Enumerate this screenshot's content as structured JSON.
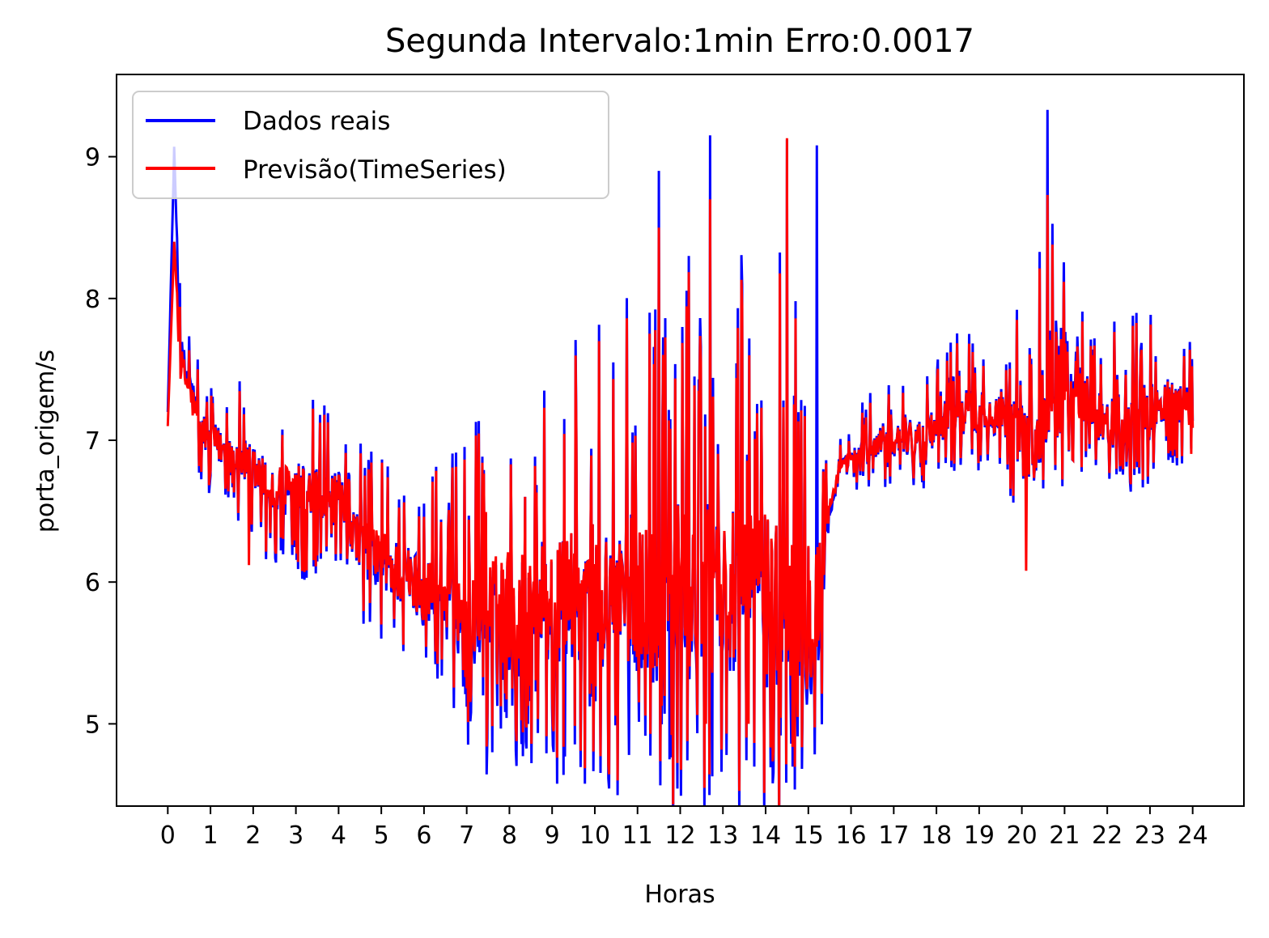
{
  "chart_data": {
    "type": "line",
    "title": "Segunda Intervalo:1min Erro:0.0017",
    "xlabel": "Horas",
    "ylabel": "porta_origem/s",
    "xlim": [
      -1.2,
      25.2
    ],
    "ylim": [
      4.42,
      9.58
    ],
    "xticks": [
      0,
      1,
      2,
      3,
      4,
      5,
      6,
      7,
      8,
      9,
      10,
      11,
      12,
      13,
      14,
      15,
      16,
      17,
      18,
      19,
      20,
      21,
      22,
      23,
      24
    ],
    "xtick_labels": [
      "0",
      "1",
      "2",
      "3",
      "4",
      "5",
      "6",
      "7",
      "8",
      "9",
      "10",
      "11",
      "12",
      "13",
      "14",
      "15",
      "16",
      "17",
      "18",
      "19",
      "20",
      "21",
      "22",
      "23",
      "24"
    ],
    "yticks": [
      5,
      6,
      7,
      8,
      9
    ],
    "ytick_labels": [
      "5",
      "6",
      "7",
      "8",
      "9"
    ],
    "grid": false,
    "legend_position": "top-left",
    "series": [
      {
        "name": "Dados reais",
        "color": "#0000ff",
        "x": [
          0.0,
          0.15,
          0.3,
          0.5,
          0.75,
          1.0,
          1.25,
          1.5,
          1.75,
          2.0,
          2.25,
          2.5,
          2.75,
          3.0,
          3.25,
          3.5,
          3.75,
          4.0,
          4.25,
          4.5,
          4.75,
          5.0,
          5.25,
          5.5,
          5.75,
          6.0,
          6.25,
          6.5,
          6.75,
          7.0,
          7.25,
          7.5,
          7.75,
          8.0,
          8.25,
          8.5,
          8.75,
          9.0,
          9.25,
          9.5,
          9.75,
          10.0,
          10.25,
          10.5,
          10.75,
          11.0,
          11.25,
          11.5,
          11.75,
          12.0,
          12.25,
          12.5,
          12.75,
          13.0,
          13.25,
          13.5,
          13.75,
          14.0,
          14.25,
          14.5,
          14.75,
          15.0,
          15.25,
          15.5,
          15.75,
          16.0,
          16.25,
          16.5,
          16.75,
          17.0,
          17.25,
          17.5,
          17.75,
          18.0,
          18.25,
          18.5,
          18.75,
          19.0,
          19.25,
          19.5,
          19.75,
          20.0,
          20.25,
          20.5,
          20.75,
          21.0,
          21.25,
          21.5,
          21.75,
          22.0,
          22.25,
          22.5,
          22.75,
          23.0,
          23.25,
          23.5,
          23.75,
          24.0
        ],
        "y": [
          7.2,
          9.05,
          7.6,
          7.4,
          7.1,
          7.0,
          6.95,
          6.9,
          6.85,
          6.8,
          6.7,
          6.65,
          6.6,
          6.65,
          6.6,
          6.6,
          6.55,
          6.6,
          6.4,
          6.3,
          6.2,
          6.15,
          6.1,
          6.05,
          6.0,
          5.95,
          5.9,
          5.85,
          5.8,
          5.8,
          5.75,
          5.7,
          5.7,
          5.8,
          5.7,
          5.75,
          5.9,
          5.8,
          5.85,
          5.9,
          5.9,
          5.9,
          5.9,
          5.95,
          5.95,
          5.9,
          5.85,
          5.85,
          5.9,
          5.95,
          5.9,
          5.9,
          5.95,
          5.9,
          5.85,
          5.9,
          5.95,
          5.9,
          5.85,
          5.9,
          5.9,
          5.8,
          5.8,
          6.5,
          6.8,
          6.85,
          6.9,
          6.95,
          7.0,
          7.0,
          7.05,
          7.0,
          7.05,
          7.1,
          7.15,
          7.2,
          7.2,
          7.2,
          7.2,
          7.2,
          7.1,
          7.0,
          6.95,
          7.2,
          7.6,
          7.5,
          7.4,
          7.3,
          7.2,
          7.1,
          7.15,
          7.15,
          7.2,
          7.2,
          7.25,
          7.3,
          7.25,
          7.25
        ],
        "amplitude": [
          0.0,
          0.0,
          0.35,
          0.35,
          0.35,
          0.35,
          0.35,
          0.4,
          0.4,
          0.45,
          0.5,
          0.5,
          0.55,
          0.55,
          0.55,
          0.55,
          0.5,
          0.45,
          0.4,
          0.5,
          0.55,
          0.55,
          0.6,
          0.6,
          0.6,
          0.65,
          0.65,
          0.7,
          0.75,
          0.85,
          0.95,
          1.05,
          1.1,
          1.1,
          1.15,
          1.15,
          1.1,
          1.1,
          1.2,
          1.2,
          1.25,
          1.3,
          1.35,
          1.4,
          1.45,
          1.5,
          1.55,
          1.6,
          1.6,
          1.6,
          1.6,
          1.6,
          1.65,
          1.65,
          1.65,
          1.6,
          1.6,
          1.6,
          1.65,
          1.7,
          1.7,
          1.75,
          1.6,
          0.2,
          0.15,
          0.2,
          0.25,
          0.3,
          0.3,
          0.3,
          0.35,
          0.35,
          0.35,
          0.35,
          0.4,
          0.4,
          0.4,
          0.4,
          0.4,
          0.45,
          0.5,
          0.7,
          0.8,
          0.9,
          0.95,
          0.85,
          0.6,
          0.5,
          0.5,
          0.45,
          0.5,
          0.5,
          0.5,
          0.5,
          0.45,
          0.45,
          0.4,
          0.3
        ],
        "peaks": [
          [
            0.15,
            9.07
          ],
          [
            12.7,
            9.15
          ],
          [
            14.5,
            9.12
          ],
          [
            15.2,
            9.08
          ],
          [
            20.6,
            9.33
          ],
          [
            11.5,
            8.9
          ]
        ],
        "troughs": [
          [
            12.75,
            4.63
          ],
          [
            11.75,
            4.75
          ],
          [
            9.3,
            4.77
          ],
          [
            14.6,
            4.86
          ],
          [
            10.8,
            4.78
          ]
        ]
      },
      {
        "name": "Previsão(TimeSeries)",
        "color": "#ff0000",
        "x": [
          0.0,
          0.15,
          0.3,
          0.5,
          0.75,
          1.0,
          1.25,
          1.5,
          1.75,
          2.0,
          2.25,
          2.5,
          2.75,
          3.0,
          3.25,
          3.5,
          3.75,
          4.0,
          4.25,
          4.5,
          4.75,
          5.0,
          5.25,
          5.5,
          5.75,
          6.0,
          6.25,
          6.5,
          6.75,
          7.0,
          7.25,
          7.5,
          7.75,
          8.0,
          8.25,
          8.5,
          8.75,
          9.0,
          9.25,
          9.5,
          9.75,
          10.0,
          10.25,
          10.5,
          10.75,
          11.0,
          11.25,
          11.5,
          11.75,
          12.0,
          12.25,
          12.5,
          12.75,
          13.0,
          13.25,
          13.5,
          13.75,
          14.0,
          14.25,
          14.5,
          14.75,
          15.0,
          15.25,
          15.5,
          15.75,
          16.0,
          16.25,
          16.5,
          16.75,
          17.0,
          17.25,
          17.5,
          17.75,
          18.0,
          18.25,
          18.5,
          18.75,
          19.0,
          19.25,
          19.5,
          19.75,
          20.0,
          20.25,
          20.5,
          20.75,
          21.0,
          21.25,
          21.5,
          21.75,
          22.0,
          22.25,
          22.5,
          22.75,
          23.0,
          23.25,
          23.5,
          23.75,
          24.0
        ],
        "y": [
          7.1,
          8.4,
          7.55,
          7.35,
          7.1,
          7.0,
          6.95,
          6.9,
          6.85,
          6.8,
          6.7,
          6.65,
          6.65,
          6.65,
          6.6,
          6.6,
          6.55,
          6.6,
          6.4,
          6.3,
          6.25,
          6.2,
          6.1,
          6.05,
          6.0,
          5.95,
          5.95,
          5.9,
          5.85,
          5.85,
          5.8,
          5.8,
          5.8,
          5.85,
          5.8,
          5.8,
          5.9,
          5.85,
          5.9,
          5.95,
          5.9,
          5.95,
          5.9,
          5.95,
          5.95,
          5.95,
          5.9,
          5.9,
          5.95,
          6.0,
          5.95,
          5.95,
          5.95,
          5.95,
          5.9,
          5.95,
          6.0,
          5.95,
          5.9,
          5.95,
          5.95,
          5.85,
          5.9,
          6.55,
          6.8,
          6.85,
          6.9,
          6.95,
          7.0,
          7.0,
          7.05,
          7.0,
          7.05,
          7.1,
          7.15,
          7.2,
          7.2,
          7.2,
          7.2,
          7.2,
          7.1,
          7.0,
          6.95,
          7.2,
          7.55,
          7.45,
          7.35,
          7.3,
          7.2,
          7.1,
          7.15,
          7.15,
          7.2,
          7.2,
          7.25,
          7.3,
          7.25,
          7.2
        ],
        "amplitude": [
          0.0,
          0.0,
          0.3,
          0.3,
          0.3,
          0.3,
          0.3,
          0.35,
          0.35,
          0.4,
          0.45,
          0.45,
          0.45,
          0.5,
          0.5,
          0.5,
          0.45,
          0.4,
          0.35,
          0.45,
          0.45,
          0.5,
          0.5,
          0.55,
          0.55,
          0.55,
          0.6,
          0.6,
          0.65,
          0.75,
          0.85,
          0.95,
          1.0,
          1.0,
          1.05,
          1.05,
          1.0,
          1.0,
          1.05,
          1.1,
          1.15,
          1.2,
          1.25,
          1.3,
          1.35,
          1.35,
          1.4,
          1.45,
          1.45,
          1.45,
          1.5,
          1.45,
          1.5,
          1.5,
          1.5,
          1.45,
          1.45,
          1.5,
          1.5,
          1.6,
          1.55,
          1.6,
          1.4,
          0.15,
          0.12,
          0.15,
          0.2,
          0.25,
          0.25,
          0.25,
          0.3,
          0.3,
          0.3,
          0.3,
          0.35,
          0.35,
          0.35,
          0.35,
          0.35,
          0.4,
          0.45,
          0.65,
          0.75,
          0.8,
          0.85,
          0.75,
          0.55,
          0.45,
          0.45,
          0.4,
          0.45,
          0.45,
          0.45,
          0.45,
          0.4,
          0.4,
          0.35,
          0.3
        ],
        "peaks": [
          [
            0.15,
            8.4
          ],
          [
            14.5,
            9.13
          ],
          [
            12.7,
            8.7
          ],
          [
            11.5,
            8.5
          ],
          [
            20.6,
            8.73
          ]
        ],
        "troughs": [
          [
            20.1,
            6.08
          ],
          [
            13.6,
            5.0
          ],
          [
            12.6,
            5.0
          ],
          [
            1.9,
            6.12
          ]
        ]
      }
    ]
  }
}
